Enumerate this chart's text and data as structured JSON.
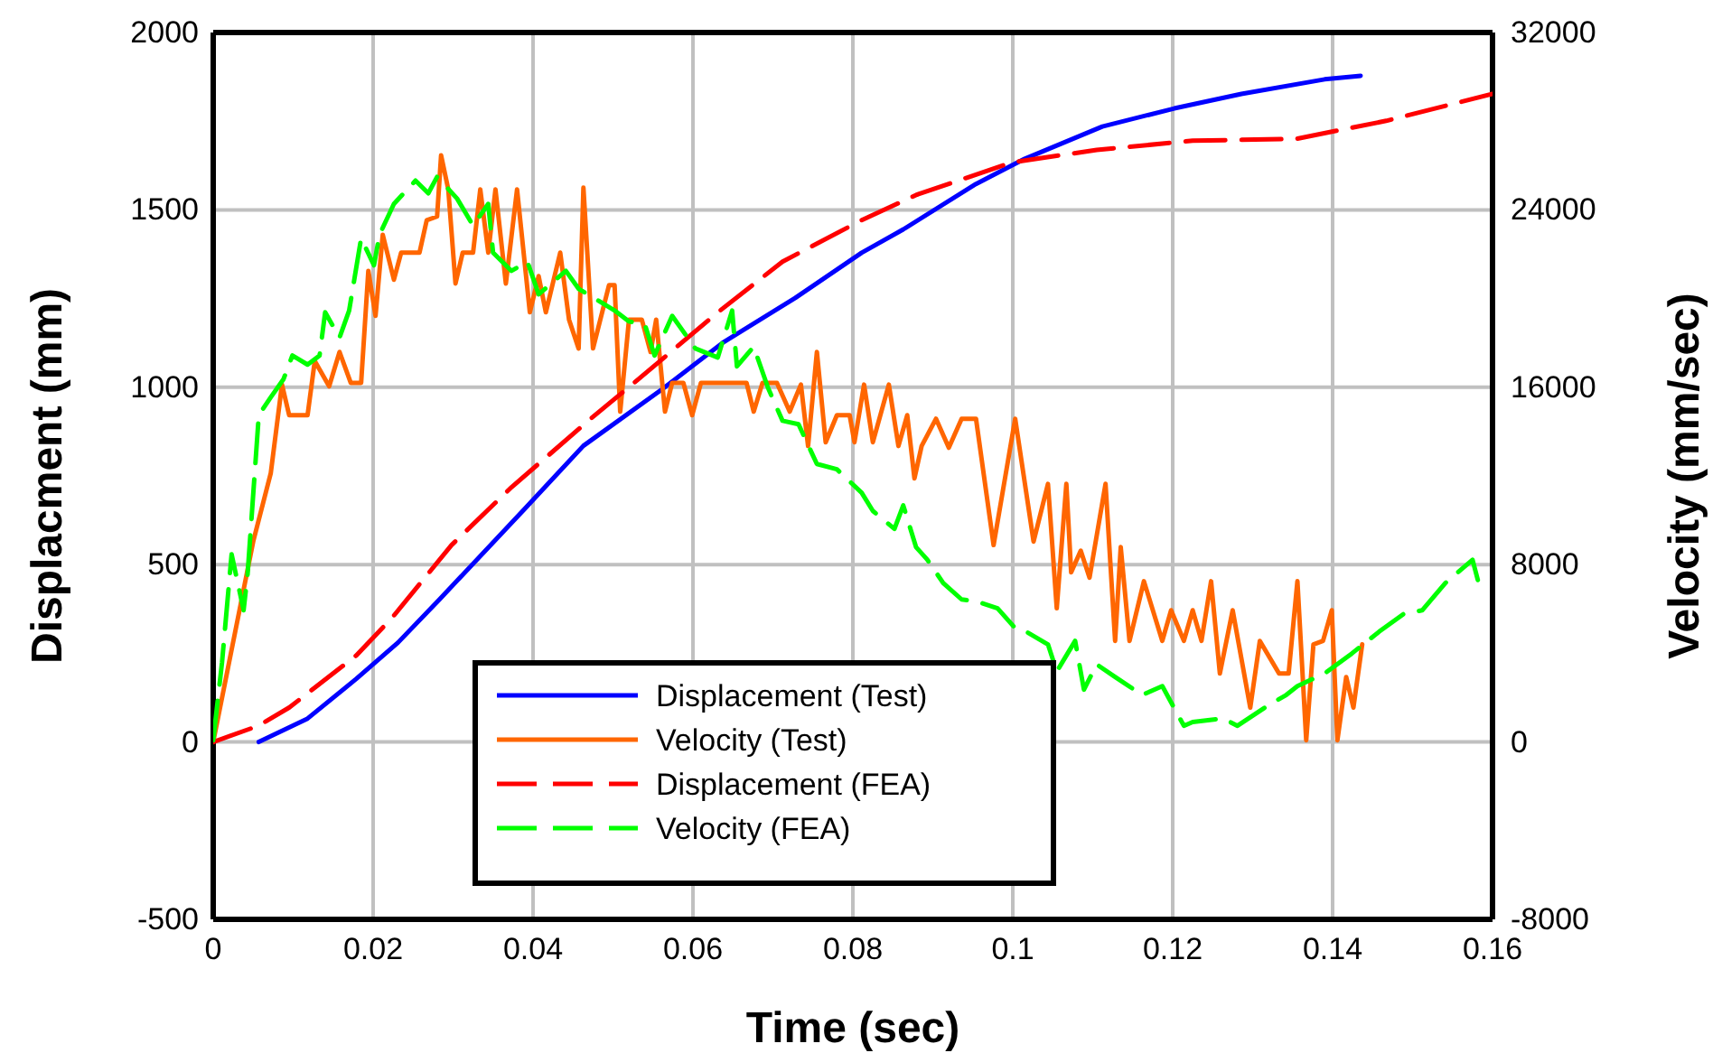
{
  "chart_data": {
    "type": "line",
    "xlabel": "Time (sec)",
    "ylabel": "Displacment (mm)",
    "y2label": "Velocity (mm/sec)",
    "xlim": [
      0,
      0.16
    ],
    "xticks": [
      0,
      0.02,
      0.04,
      0.06,
      0.08,
      0.1,
      0.12,
      0.14,
      0.16
    ],
    "ylim": [
      -500,
      2000
    ],
    "yticks": [
      -500,
      0,
      500,
      1000,
      1500,
      2000
    ],
    "y2lim": [
      -8000,
      32000
    ],
    "y2ticks": [
      -8000,
      0,
      8000,
      16000,
      24000,
      32000
    ],
    "grid": true,
    "legend": "bottom",
    "series": [
      {
        "name": "Displacement (Test)",
        "color": "#0000ff",
        "line_style": "solid",
        "x": [
          0.0057,
          0.0118,
          0.0179,
          0.0231,
          0.0283,
          0.0389,
          0.0463,
          0.0563,
          0.0637,
          0.0728,
          0.0811,
          0.0863,
          0.0954,
          0.1015,
          0.1112,
          0.1202,
          0.1286,
          0.139,
          0.1435
        ],
        "values": [
          0,
          66,
          178,
          280,
          402,
          656,
          835,
          997,
          1125,
          1252,
          1379,
          1445,
          1573,
          1644,
          1735,
          1786,
          1827,
          1868,
          1878
        ]
      },
      {
        "name": "Velocity (Test)",
        "color": "#ff6600",
        "line_style": "solid",
        "axis": "y2",
        "x": [
          0,
          0.005,
          0.0072,
          0.0086,
          0.0095,
          0.0118,
          0.0127,
          0.0145,
          0.0158,
          0.0172,
          0.0185,
          0.0194,
          0.0203,
          0.0212,
          0.0226,
          0.0235,
          0.0258,
          0.0267,
          0.028,
          0.0285,
          0.0294,
          0.0303,
          0.0312,
          0.0325,
          0.0334,
          0.0344,
          0.0353,
          0.0366,
          0.038,
          0.0396,
          0.0407,
          0.0416,
          0.0434,
          0.0445,
          0.0457,
          0.0463,
          0.0475,
          0.0495,
          0.0502,
          0.0509,
          0.052,
          0.0536,
          0.0547,
          0.0554,
          0.0565,
          0.0574,
          0.0588,
          0.0599,
          0.061,
          0.0667,
          0.0676,
          0.0687,
          0.0705,
          0.0721,
          0.0735,
          0.0744,
          0.0755,
          0.0766,
          0.078,
          0.0796,
          0.0802,
          0.0814,
          0.0825,
          0.0845,
          0.0857,
          0.0868,
          0.0877,
          0.0886,
          0.0904,
          0.092,
          0.0936,
          0.0954,
          0.0976,
          0.1003,
          0.1026,
          0.1044,
          0.1055,
          0.1067,
          0.1073,
          0.1085,
          0.1096,
          0.1116,
          0.1128,
          0.1135,
          0.1146,
          0.1164,
          0.1187,
          0.1198,
          0.1214,
          0.1225,
          0.1236,
          0.1248,
          0.1259,
          0.1275,
          0.1297,
          0.1309,
          0.1333,
          0.1345,
          0.1356,
          0.1367,
          0.1376,
          0.1388,
          0.1399,
          0.1406,
          0.1417,
          0.1426,
          0.1437
        ],
        "values": [
          0,
          9040,
          12130,
          16120,
          14740,
          14740,
          17180,
          16040,
          17590,
          16200,
          16200,
          21250,
          19220,
          22880,
          20850,
          22070,
          22070,
          23530,
          23700,
          26460,
          24920,
          20680,
          22070,
          22070,
          24920,
          22070,
          24920,
          20680,
          24920,
          19380,
          21010,
          19380,
          22070,
          19050,
          17750,
          25000,
          17750,
          20600,
          20600,
          14900,
          19050,
          19050,
          17590,
          19050,
          14900,
          16200,
          16200,
          14740,
          16200,
          16200,
          14900,
          16200,
          16200,
          14900,
          16120,
          13350,
          17590,
          13520,
          14740,
          14740,
          13520,
          16120,
          13520,
          16120,
          13350,
          14740,
          11890,
          13350,
          14580,
          13270,
          14580,
          14580,
          8880,
          14580,
          9040,
          11640,
          6030,
          11640,
          7650,
          8630,
          7410,
          11640,
          4560,
          8790,
          4560,
          7250,
          4560,
          5940,
          4560,
          5940,
          4560,
          7250,
          3090,
          5940,
          1550,
          4560,
          3090,
          3090,
          7250,
          80,
          4400,
          4560,
          5940,
          80,
          2930,
          1550,
          4400
        ]
      },
      {
        "name": "Displacement (FEA)",
        "color": "#ff0000",
        "line_style": "dashed",
        "x": [
          0,
          0.0057,
          0.0095,
          0.0179,
          0.0224,
          0.0298,
          0.0373,
          0.0472,
          0.0524,
          0.0631,
          0.0712,
          0.0811,
          0.0879,
          0.0999,
          0.1105,
          0.1225,
          0.1354,
          0.1467,
          0.16
        ],
        "values": [
          0,
          46,
          97,
          244,
          351,
          555,
          718,
          911,
          1008,
          1211,
          1354,
          1471,
          1542,
          1634,
          1669,
          1695,
          1700,
          1751,
          1827
        ]
      },
      {
        "name": "Velocity (FEA)",
        "color": "#00ff00",
        "line_style": "dashed",
        "axis": "y2",
        "x": [
          0,
          0.0011,
          0.0023,
          0.0038,
          0.0043,
          0.0057,
          0.0072,
          0.0088,
          0.0099,
          0.0118,
          0.0133,
          0.014,
          0.0158,
          0.017,
          0.0185,
          0.0201,
          0.0208,
          0.0226,
          0.0253,
          0.0269,
          0.028,
          0.0305,
          0.0325,
          0.0344,
          0.035,
          0.0373,
          0.0393,
          0.0407,
          0.0441,
          0.0457,
          0.0502,
          0.052,
          0.054,
          0.0552,
          0.0574,
          0.0603,
          0.0631,
          0.0649,
          0.0655,
          0.0676,
          0.0694,
          0.0712,
          0.0732,
          0.0755,
          0.078,
          0.0811,
          0.0825,
          0.0852,
          0.0863,
          0.0879,
          0.0893,
          0.0913,
          0.0936,
          0.0954,
          0.0981,
          0.1003,
          0.1017,
          0.1044,
          0.1055,
          0.1078,
          0.1089,
          0.1105,
          0.1128,
          0.1162,
          0.1187,
          0.1214,
          0.1225,
          0.1263,
          0.1281,
          0.1322,
          0.1342,
          0.1356,
          0.139,
          0.1424,
          0.1458,
          0.1489,
          0.1512,
          0.1541,
          0.1575,
          0.1582
        ],
        "values": [
          80,
          3580,
          8470,
          5940,
          7570,
          14740,
          15550,
          16370,
          17430,
          17020,
          17430,
          19380,
          18240,
          19460,
          22720,
          21500,
          22880,
          24270,
          25320,
          24750,
          25490,
          24510,
          23290,
          24270,
          22070,
          21250,
          21660,
          20190,
          21250,
          20440,
          19460,
          18970,
          18810,
          17430,
          19220,
          17750,
          17340,
          19460,
          16940,
          17830,
          15960,
          14490,
          14330,
          12540,
          12300,
          11240,
          10420,
          9610,
          10670,
          8790,
          8230,
          7170,
          6430,
          6350,
          6030,
          5130,
          4970,
          4400,
          3180,
          4560,
          2360,
          3500,
          2930,
          2120,
          2520,
          730,
          900,
          1060,
          730,
          1710,
          2120,
          2520,
          3090,
          3990,
          4970,
          5780,
          5940,
          7170,
          8220,
          7250
        ]
      }
    ]
  }
}
